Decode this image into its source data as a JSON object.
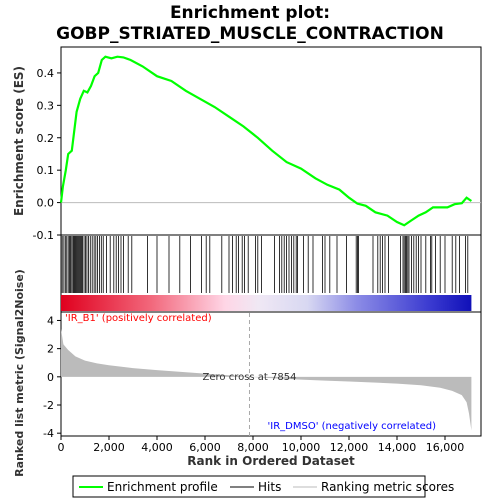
{
  "chart_data": {
    "type": "line",
    "title_line1": "Enrichment plot:",
    "title_line2": "GOBP_STRIATED_MUSCLE_CONTRACTION",
    "xlabel": "Rank in Ordered Dataset",
    "ylabel_top": "Enrichment score (ES)",
    "ylabel_bottom": "Ranked list metric (Signal2Noise)",
    "xlim": [
      0,
      17500
    ],
    "x_ticks": [
      0,
      2000,
      4000,
      6000,
      8000,
      10000,
      12000,
      14000,
      16000
    ],
    "x_tick_labels": [
      "0",
      "2,000",
      "4,000",
      "6,000",
      "8,000",
      "10,000",
      "12,000",
      "14,000",
      "16,000"
    ],
    "es_ylim": [
      -0.1,
      0.48
    ],
    "es_ticks": [
      -0.1,
      0.0,
      0.1,
      0.2,
      0.3,
      0.4
    ],
    "es_tick_labels": [
      "-0.1",
      "0.0",
      "0.1",
      "0.2",
      "0.3",
      "0.4"
    ],
    "metric_ylim": [
      -4.2,
      4.6
    ],
    "metric_ticks": [
      -4,
      -2,
      0,
      2,
      4
    ],
    "metric_tick_labels": [
      "-4",
      "-2",
      "0",
      "2",
      "4"
    ],
    "zero_cross_rank": 7854,
    "zero_cross_label": "Zero cross at 7854",
    "positive_label": "'IR_B1' (positively correlated)",
    "negative_label": "'IR_DMSO' (negatively correlated)",
    "n_genes": 17100,
    "enrichment_profile": [
      [
        0,
        0.0
      ],
      [
        80,
        0.05
      ],
      [
        200,
        0.1
      ],
      [
        300,
        0.15
      ],
      [
        450,
        0.16
      ],
      [
        550,
        0.22
      ],
      [
        650,
        0.28
      ],
      [
        800,
        0.32
      ],
      [
        950,
        0.345
      ],
      [
        1100,
        0.34
      ],
      [
        1250,
        0.36
      ],
      [
        1400,
        0.39
      ],
      [
        1550,
        0.4
      ],
      [
        1700,
        0.44
      ],
      [
        1850,
        0.45
      ],
      [
        2100,
        0.445
      ],
      [
        2350,
        0.45
      ],
      [
        2600,
        0.448
      ],
      [
        2900,
        0.44
      ],
      [
        3400,
        0.42
      ],
      [
        4000,
        0.39
      ],
      [
        4600,
        0.375
      ],
      [
        5200,
        0.345
      ],
      [
        5800,
        0.32
      ],
      [
        6400,
        0.295
      ],
      [
        7000,
        0.265
      ],
      [
        7600,
        0.235
      ],
      [
        8200,
        0.2
      ],
      [
        8800,
        0.16
      ],
      [
        9400,
        0.125
      ],
      [
        10000,
        0.105
      ],
      [
        10600,
        0.075
      ],
      [
        11100,
        0.055
      ],
      [
        11600,
        0.04
      ],
      [
        12000,
        0.015
      ],
      [
        12350,
        -0.003
      ],
      [
        12700,
        -0.01
      ],
      [
        13100,
        -0.03
      ],
      [
        13600,
        -0.04
      ],
      [
        14000,
        -0.06
      ],
      [
        14300,
        -0.07
      ],
      [
        14600,
        -0.055
      ],
      [
        14900,
        -0.04
      ],
      [
        15200,
        -0.03
      ],
      [
        15500,
        -0.015
      ],
      [
        15800,
        -0.015
      ],
      [
        16100,
        -0.015
      ],
      [
        16400,
        -0.005
      ],
      [
        16700,
        -0.002
      ],
      [
        16900,
        0.015
      ],
      [
        17100,
        0.005
      ]
    ],
    "hits": [
      50,
      120,
      180,
      240,
      300,
      350,
      400,
      450,
      500,
      540,
      580,
      620,
      660,
      700,
      740,
      780,
      820,
      860,
      900,
      960,
      1020,
      1080,
      1150,
      1220,
      1300,
      1380,
      1450,
      1520,
      1600,
      1680,
      1760,
      1900,
      2050,
      2200,
      2300,
      2400,
      2500,
      2600,
      2800,
      2950,
      3600,
      4000,
      4500,
      4950,
      5400,
      5850,
      6050,
      6200,
      6700,
      7000,
      7150,
      7300,
      7400,
      7550,
      7650,
      7800,
      8100,
      8200,
      8350,
      8900,
      9100,
      9200,
      9300,
      9400,
      9500,
      9600,
      9700,
      9800,
      9850,
      10100,
      10300,
      10500,
      10900,
      11000,
      11200,
      11500,
      11900,
      12300,
      12350,
      12400,
      13000,
      13200,
      13300,
      13400,
      13500,
      13650,
      14150,
      14250,
      14300,
      14350,
      14400,
      14450,
      14500,
      14600,
      14700,
      14800,
      14900,
      15000,
      15200,
      15400,
      15450,
      15600,
      15800,
      16000,
      16300,
      16450,
      16600,
      16850,
      16950
    ],
    "metric_profile": [
      [
        0,
        3.4
      ],
      [
        100,
        2.3
      ],
      [
        300,
        1.9
      ],
      [
        600,
        1.45
      ],
      [
        1000,
        1.15
      ],
      [
        1500,
        0.95
      ],
      [
        2000,
        0.82
      ],
      [
        3000,
        0.62
      ],
      [
        4000,
        0.48
      ],
      [
        5000,
        0.35
      ],
      [
        6000,
        0.23
      ],
      [
        7000,
        0.11
      ],
      [
        7854,
        0.0
      ],
      [
        9000,
        -0.12
      ],
      [
        10000,
        -0.2
      ],
      [
        11000,
        -0.27
      ],
      [
        12000,
        -0.33
      ],
      [
        13000,
        -0.4
      ],
      [
        14000,
        -0.48
      ],
      [
        15000,
        -0.6
      ],
      [
        15800,
        -0.78
      ],
      [
        16300,
        -1.0
      ],
      [
        16700,
        -1.3
      ],
      [
        16900,
        -1.8
      ],
      [
        17000,
        -2.6
      ],
      [
        17100,
        -3.8
      ]
    ],
    "legend": {
      "items": [
        {
          "label": "Enrichment profile",
          "color": "#00ff00"
        },
        {
          "label": "Hits",
          "color": "#000000"
        },
        {
          "label": "Ranking metric scores",
          "color": "#bbbbbb"
        }
      ]
    },
    "colors": {
      "profile": "#00ff00",
      "hits": "#000000",
      "metric_fill": "#bbbbbb",
      "positive_text": "#ff0000",
      "negative_text": "#0000ff",
      "zero_line": "#aaaaaa"
    }
  }
}
